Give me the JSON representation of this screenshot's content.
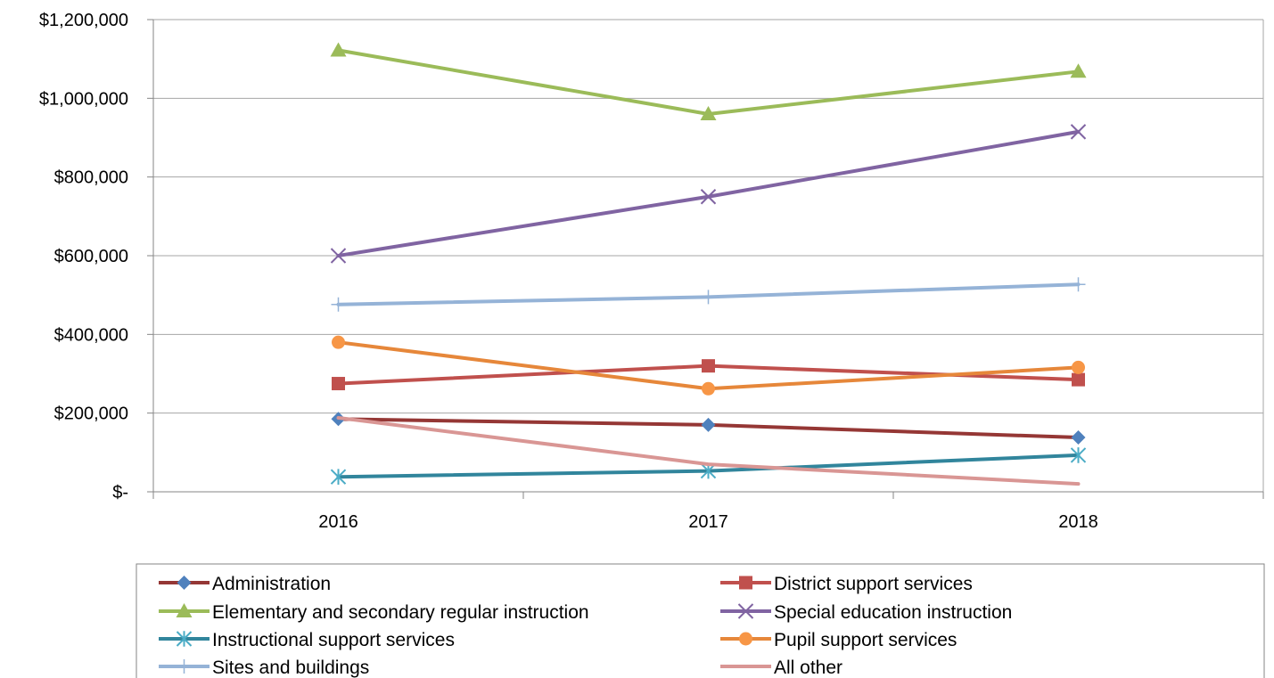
{
  "chart_data": {
    "type": "line",
    "categories": [
      "2016",
      "2017",
      "2018"
    ],
    "ylim": [
      0,
      1200000
    ],
    "y_ticks": [
      0,
      200000,
      400000,
      600000,
      800000,
      1000000,
      1200000
    ],
    "y_tick_labels": [
      "$-",
      "$200,000",
      "$400,000",
      "$600,000",
      "$800,000",
      "$1,000,000",
      "$1,200,000"
    ],
    "grid": "horizontal",
    "legend_position": "bottom",
    "series": [
      {
        "name": "Administration",
        "values": [
          185000,
          170000,
          138000
        ],
        "color": "#953735",
        "marker": "diamond",
        "marker_color": "#4F81BD"
      },
      {
        "name": "District support services",
        "values": [
          275000,
          320000,
          285000
        ],
        "color": "#C0504D",
        "marker": "square",
        "marker_color": "#C0504D"
      },
      {
        "name": "Elementary and secondary regular instruction",
        "values": [
          1122000,
          960000,
          1068000
        ],
        "color": "#9BBB59",
        "marker": "triangle",
        "marker_color": "#9BBB59"
      },
      {
        "name": "Special education instruction",
        "values": [
          600000,
          750000,
          915000
        ],
        "color": "#8064A2",
        "marker": "x",
        "marker_color": "#8064A2"
      },
      {
        "name": "Instructional support services",
        "values": [
          38000,
          53000,
          93000
        ],
        "color": "#31859C",
        "marker": "star",
        "marker_color": "#4BACC6"
      },
      {
        "name": "Pupil support services",
        "values": [
          380000,
          262000,
          316000
        ],
        "color": "#E6873A",
        "marker": "circle",
        "marker_color": "#F79646"
      },
      {
        "name": "Sites and buildings",
        "values": [
          476000,
          495000,
          527000
        ],
        "color": "#95B3D7",
        "marker": "plus",
        "marker_color": "#95B3D7"
      },
      {
        "name": "All other",
        "values": [
          188000,
          70000,
          20000
        ],
        "color": "#D99694",
        "marker": "none",
        "marker_color": "#D99694"
      }
    ]
  }
}
